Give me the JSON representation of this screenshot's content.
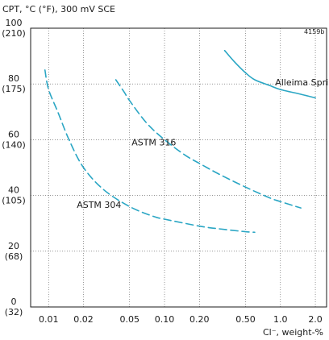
{
  "chart_data": {
    "type": "line",
    "ylabel": "CPT, °C (°F), 300 mV SCE",
    "xlabel": "Cl⁻, weight-%",
    "figure_id": "4159b",
    "x_scale": "log",
    "xlim": [
      0.007,
      2.5
    ],
    "ylim": [
      0,
      100
    ],
    "grid": true,
    "x_ticks": [
      {
        "value": 0.01,
        "label": "0.01"
      },
      {
        "value": 0.02,
        "label": "0.02"
      },
      {
        "value": 0.05,
        "label": "0.05"
      },
      {
        "value": 0.1,
        "label": "0.10"
      },
      {
        "value": 0.2,
        "label": "0.20"
      },
      {
        "value": 0.5,
        "label": "0.50"
      },
      {
        "value": 1.0,
        "label": "1.0"
      },
      {
        "value": 2.0,
        "label": "2.0"
      }
    ],
    "y_ticks": [
      {
        "value": 0,
        "label": "0",
        "label2": "(32)"
      },
      {
        "value": 20,
        "label": "20",
        "label2": "(68)"
      },
      {
        "value": 40,
        "label": "40",
        "label2": "(105)"
      },
      {
        "value": 60,
        "label": "60",
        "label2": "(140)"
      },
      {
        "value": 80,
        "label": "80",
        "label2": "(175)"
      },
      {
        "value": 100,
        "label": "100",
        "label2": "(210)"
      }
    ],
    "series": [
      {
        "name": "Alleima Springflex",
        "style": "solid",
        "color": "#2aa6c4",
        "label_at": [
          0.9,
          79.5
        ],
        "x": [
          0.33,
          0.4,
          0.5,
          0.6,
          0.8,
          1.0,
          1.5,
          2.0
        ],
        "y": [
          92,
          88,
          84,
          81.5,
          79.5,
          78,
          76.3,
          75
        ]
      },
      {
        "name": "ASTM 316",
        "style": "dashed",
        "color": "#2aa6c4",
        "label_at": [
          0.052,
          58
        ],
        "x": [
          0.038,
          0.045,
          0.05,
          0.07,
          0.1,
          0.15,
          0.2,
          0.3,
          0.5,
          0.8,
          1.0,
          1.5
        ],
        "y": [
          81.5,
          77,
          74,
          66,
          60,
          54.5,
          51.5,
          47.5,
          43,
          39.2,
          37.8,
          35.5
        ]
      },
      {
        "name": "ASTM 304",
        "style": "dashed",
        "color": "#2aa6c4",
        "label_at": [
          0.0175,
          35.5
        ],
        "x": [
          0.0093,
          0.01,
          0.012,
          0.015,
          0.02,
          0.03,
          0.05,
          0.08,
          0.1,
          0.2,
          0.3,
          0.5,
          0.6
        ],
        "y": [
          85,
          78,
          70,
          60,
          50,
          42,
          36,
          32.5,
          31.5,
          29,
          28,
          27,
          26.8
        ]
      }
    ]
  }
}
